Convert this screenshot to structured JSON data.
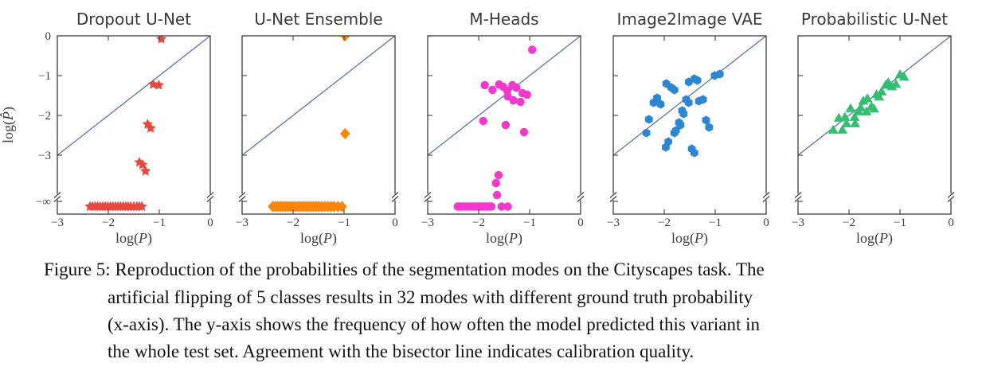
{
  "colors": {
    "background": "#ffffff",
    "axis": "#3d3d3d",
    "tick_text": "#3d3d3d",
    "title_text": "#3a3a3a",
    "caption_text": "#121212",
    "bisector": "#4c72b0"
  },
  "caption": {
    "lines": [
      "Figure 5: Reproduction of the probabilities of the segmentation modes on the Cityscapes task. The",
      "artificial flipping of 5 classes results in 32 modes with different ground truth probability",
      "(x-axis). The y-axis shows the frequency of how often the model predicted this variant in",
      "the whole test set. Agreement with the bisector line indicates calibration quality."
    ]
  },
  "chart_data": [
    {
      "type": "scatter",
      "title": "Dropout U-Net",
      "marker": "star",
      "color": "#e8493d",
      "xlabel": "log(P)",
      "ylabel": "log(P̂)",
      "xlim": [
        -3,
        0
      ],
      "xticks": [
        -3,
        -2,
        -1,
        0
      ],
      "yticks": [
        0,
        -1,
        -2,
        -3
      ],
      "neg_inf_label": "−∞",
      "axis_break": true,
      "bisector": {
        "from": [
          -3,
          -3
        ],
        "to": [
          0,
          0
        ]
      },
      "points": [
        [
          -0.96,
          -0.08
        ],
        [
          -1.12,
          -1.22
        ],
        [
          -1.01,
          -1.24
        ],
        [
          -1.23,
          -2.22
        ],
        [
          -1.17,
          -2.32
        ],
        [
          -1.39,
          -3.18
        ],
        [
          -1.33,
          -3.24
        ],
        [
          -1.27,
          -3.4
        ]
      ],
      "neg_inf_points_x": [
        -2.36,
        -2.31,
        -2.26,
        -2.21,
        -2.16,
        -2.11,
        -2.06,
        -2.01,
        -1.96,
        -1.91,
        -1.86,
        -1.81,
        -1.76,
        -1.71,
        -1.66,
        -1.61,
        -1.56,
        -1.5,
        -1.44,
        -1.39,
        -1.34
      ]
    },
    {
      "type": "scatter",
      "title": "U-Net Ensemble",
      "marker": "diamond",
      "color": "#f8860d",
      "xlabel": "log(P)",
      "ylabel": "log(P̂)",
      "xlim": [
        -3,
        0
      ],
      "xticks": [
        -3,
        -2,
        -1,
        0
      ],
      "yticks": [
        0,
        -1,
        -2,
        -3
      ],
      "neg_inf_label": "−∞",
      "axis_break": true,
      "bisector": {
        "from": [
          -3,
          -3
        ],
        "to": [
          0,
          0
        ]
      },
      "points": [
        [
          -0.98,
          0.0
        ],
        [
          -0.98,
          -2.46
        ]
      ],
      "neg_inf_points_x": [
        -2.4,
        -2.35,
        -2.3,
        -2.25,
        -2.2,
        -2.15,
        -2.1,
        -2.05,
        -2.0,
        -1.95,
        -1.9,
        -1.85,
        -1.8,
        -1.75,
        -1.7,
        -1.65,
        -1.6,
        -1.55,
        -1.5,
        -1.44,
        -1.38,
        -1.32,
        -1.26,
        -1.2,
        -1.12,
        -1.04
      ]
    },
    {
      "type": "scatter",
      "title": "M-Heads",
      "marker": "circle",
      "color": "#f637cd",
      "xlabel": "log(P)",
      "ylabel": "log(P̂)",
      "xlim": [
        -3,
        0
      ],
      "xticks": [
        -3,
        -2,
        -1,
        0
      ],
      "yticks": [
        0,
        -1,
        -2,
        -3
      ],
      "neg_inf_label": "−∞",
      "axis_break": true,
      "bisector": {
        "from": [
          -3,
          -3
        ],
        "to": [
          0,
          0
        ]
      },
      "points": [
        [
          -0.95,
          -0.35
        ],
        [
          -1.88,
          -1.24
        ],
        [
          -1.73,
          -1.36
        ],
        [
          -1.6,
          -1.22
        ],
        [
          -1.52,
          -1.28
        ],
        [
          -1.44,
          -1.38
        ],
        [
          -1.34,
          -1.24
        ],
        [
          -1.26,
          -1.3
        ],
        [
          -1.14,
          -1.44
        ],
        [
          -1.05,
          -1.48
        ],
        [
          -1.43,
          -1.52
        ],
        [
          -1.32,
          -1.62
        ],
        [
          -1.18,
          -1.66
        ],
        [
          -1.91,
          -2.14
        ],
        [
          -1.47,
          -2.24
        ],
        [
          -1.11,
          -2.42
        ],
        [
          -1.61,
          -3.5
        ],
        [
          -1.66,
          -3.7
        ],
        [
          -1.64,
          -4.0
        ]
      ],
      "neg_inf_points_x": [
        -2.41,
        -2.35,
        -2.29,
        -2.23,
        -2.17,
        -2.11,
        -2.05,
        -1.99,
        -1.93,
        -1.87,
        -1.81,
        -1.75,
        -1.55,
        -1.43
      ]
    },
    {
      "type": "scatter",
      "title": "Image2Image VAE",
      "marker": "hexagon",
      "color": "#2d86d3",
      "xlabel": "log(P)",
      "ylabel": "log(P̂)",
      "xlim": [
        -3,
        0
      ],
      "xticks": [
        -3,
        -2,
        -1,
        0
      ],
      "yticks": [
        0,
        -1,
        -2,
        -3
      ],
      "neg_inf_label": "−∞",
      "axis_break": true,
      "bisector": {
        "from": [
          -3,
          -3
        ],
        "to": [
          0,
          0
        ]
      },
      "points": [
        [
          -0.91,
          -0.96
        ],
        [
          -1.01,
          -1.0
        ],
        [
          -1.41,
          -1.08
        ],
        [
          -1.35,
          -1.12
        ],
        [
          -1.52,
          -1.16
        ],
        [
          -1.96,
          -1.2
        ],
        [
          -1.86,
          -1.3
        ],
        [
          -1.8,
          -1.36
        ],
        [
          -2.14,
          -1.56
        ],
        [
          -1.57,
          -1.6
        ],
        [
          -1.24,
          -1.6
        ],
        [
          -1.32,
          -1.64
        ],
        [
          -2.21,
          -1.68
        ],
        [
          -1.52,
          -1.68
        ],
        [
          -2.07,
          -1.72
        ],
        [
          -1.65,
          -1.88
        ],
        [
          -1.62,
          -1.96
        ],
        [
          -2.3,
          -2.1
        ],
        [
          -1.18,
          -2.12
        ],
        [
          -1.71,
          -2.18
        ],
        [
          -1.68,
          -2.24
        ],
        [
          -1.12,
          -2.3
        ],
        [
          -1.77,
          -2.38
        ],
        [
          -2.35,
          -2.44
        ],
        [
          -1.8,
          -2.44
        ],
        [
          -1.92,
          -2.66
        ],
        [
          -1.97,
          -2.8
        ],
        [
          -1.46,
          -2.84
        ],
        [
          -1.41,
          -2.94
        ]
      ],
      "neg_inf_points_x": []
    },
    {
      "type": "scatter",
      "title": "Probabilistic U-Net",
      "marker": "triangle-up",
      "color": "#33bf71",
      "xlabel": "log(P)",
      "ylabel": "log(P̂)",
      "xlim": [
        -3,
        0
      ],
      "xticks": [
        -3,
        -2,
        -1,
        0
      ],
      "yticks": [
        0,
        -1,
        -2,
        -3
      ],
      "neg_inf_label": "−∞",
      "axis_break": true,
      "bisector": {
        "from": [
          -3,
          -3
        ],
        "to": [
          0,
          0
        ]
      },
      "points": [
        [
          -2.31,
          -2.36
        ],
        [
          -2.2,
          -2.06
        ],
        [
          -2.13,
          -2.36
        ],
        [
          -2.08,
          -2.04
        ],
        [
          -2.05,
          -2.2
        ],
        [
          -1.97,
          -1.82
        ],
        [
          -1.89,
          -2.04
        ],
        [
          -1.88,
          -2.2
        ],
        [
          -1.81,
          -1.9
        ],
        [
          -1.77,
          -1.8
        ],
        [
          -1.72,
          -1.63
        ],
        [
          -1.66,
          -1.9
        ],
        [
          -1.64,
          -1.57
        ],
        [
          -1.56,
          -1.77
        ],
        [
          -1.51,
          -1.83
        ],
        [
          -1.46,
          -1.47
        ],
        [
          -1.41,
          -1.53
        ],
        [
          -1.36,
          -1.4
        ],
        [
          -1.28,
          -1.23
        ],
        [
          -1.23,
          -1.17
        ],
        [
          -1.16,
          -1.27
        ],
        [
          -1.08,
          -1.21
        ],
        [
          -1.0,
          -0.97
        ],
        [
          -0.92,
          -1.03
        ]
      ],
      "neg_inf_points_x": []
    }
  ]
}
